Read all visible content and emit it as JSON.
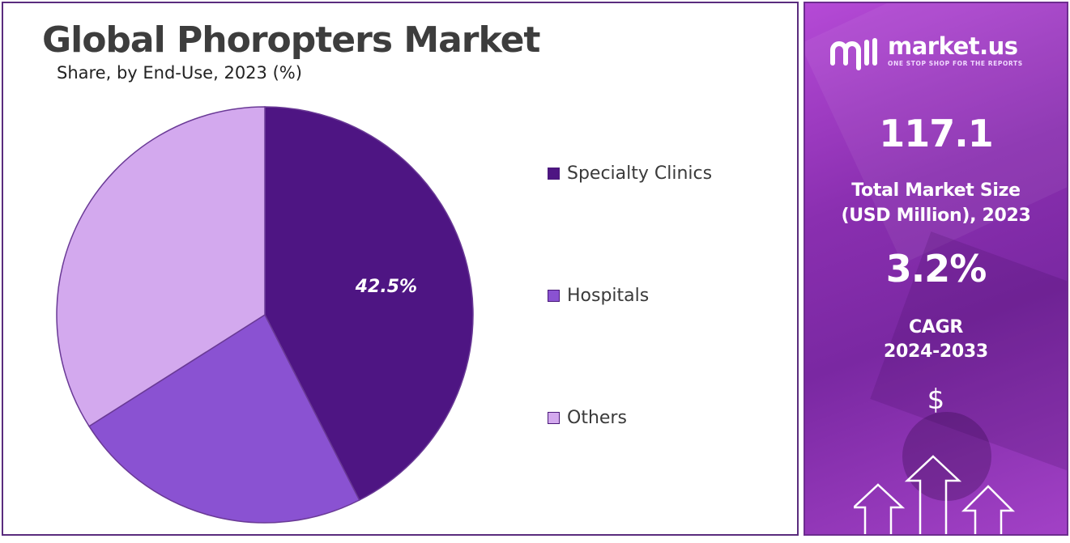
{
  "chart_data": {
    "type": "pie",
    "title": "Global Phoropters Market",
    "subtitle": "Share, by End-Use, 2023 (%)",
    "slices": [
      {
        "label": "Specialty Clinics",
        "value": 42.5,
        "color": "#4e1583",
        "data_label": "42.5%"
      },
      {
        "label": "Hospitals",
        "value": 23.5,
        "color": "#8a52d2",
        "data_label": ""
      },
      {
        "label": "Others",
        "value": 34.0,
        "color": "#d3a9ee",
        "data_label": ""
      }
    ],
    "start_angle_deg": 0,
    "direction": "clockwise",
    "legend_position": "right"
  },
  "sidebar": {
    "brand": {
      "name": "market.us",
      "tagline": "ONE STOP SHOP FOR THE REPORTS",
      "logo_icon": "market-us-logo-icon"
    },
    "market_size": {
      "value": "117.1",
      "label_line1": "Total Market Size",
      "label_line2": "(USD Million), 2023"
    },
    "cagr": {
      "value": "3.2%",
      "label_line1": "CAGR",
      "label_line2": "2024-2033"
    },
    "dollar_symbol": "$",
    "icons": [
      "dollar-icon",
      "up-arrow-icon"
    ]
  }
}
